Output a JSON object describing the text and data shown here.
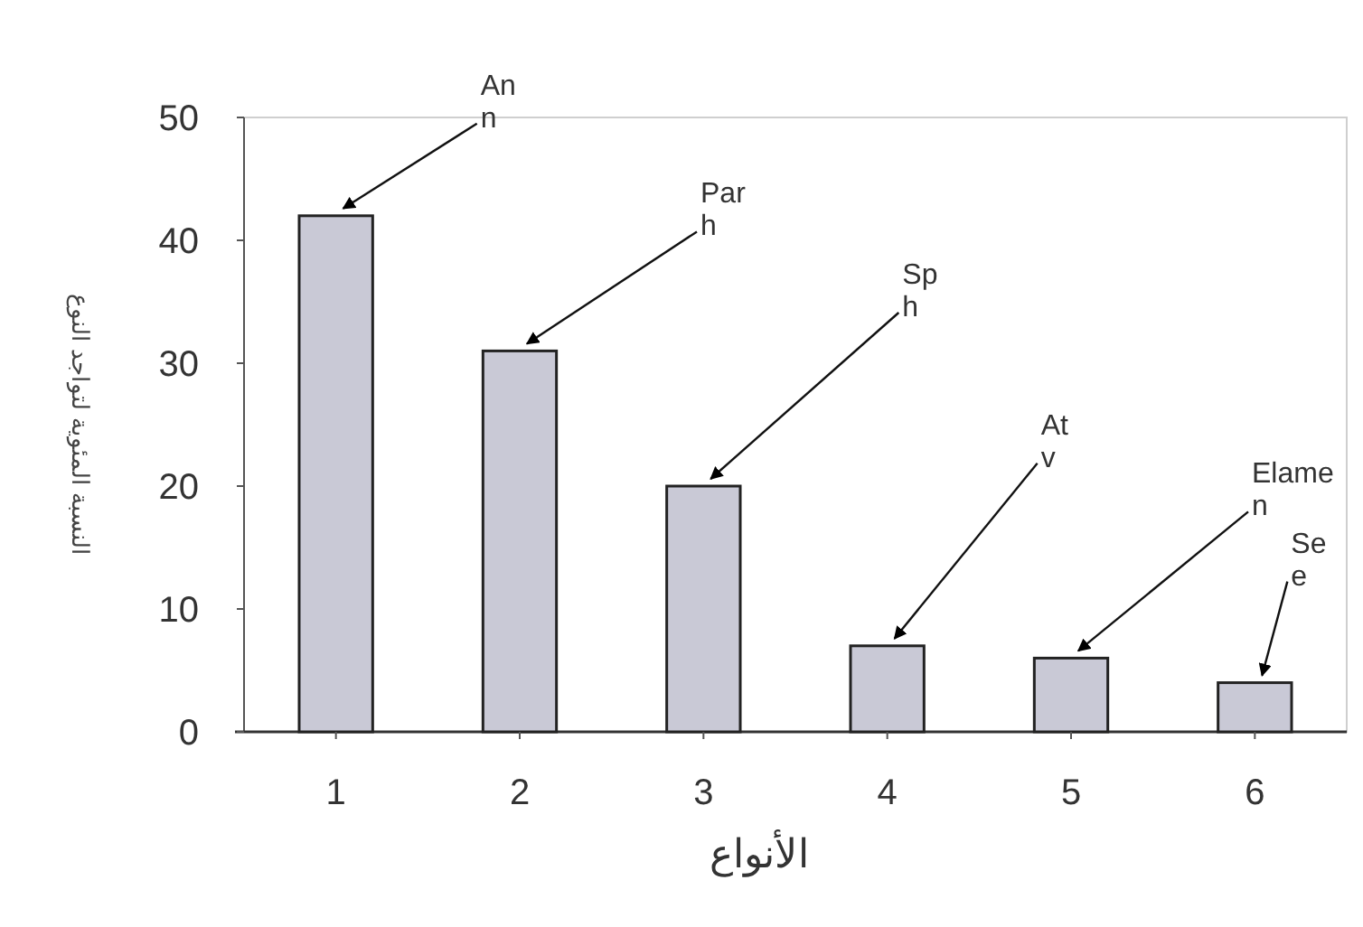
{
  "chart_data": {
    "type": "bar",
    "xlabel": "الأنواع",
    "ylabel": "النسبة المئوية لتواجد النوع",
    "categories": [
      "1",
      "2",
      "3",
      "4",
      "5",
      "6"
    ],
    "values": [
      42,
      31,
      20,
      7,
      6,
      4
    ],
    "color": "#c9c9d6",
    "ylim": [
      0,
      50
    ],
    "yticks": [
      0,
      10,
      20,
      30,
      40,
      50
    ],
    "grid": false,
    "annotations": [
      {
        "text": "An\nn",
        "x": "1",
        "y": 42
      },
      {
        "text": "Par\nh",
        "x": "2",
        "y": 31
      },
      {
        "text": "Sp\nh",
        "x": "3",
        "y": 20
      },
      {
        "text": "At\nv",
        "x": "4",
        "y": 7
      },
      {
        "text": "Elame\nn",
        "x": "5",
        "y": 6
      },
      {
        "text": "Se\ne",
        "x": "6",
        "y": 4
      }
    ]
  }
}
